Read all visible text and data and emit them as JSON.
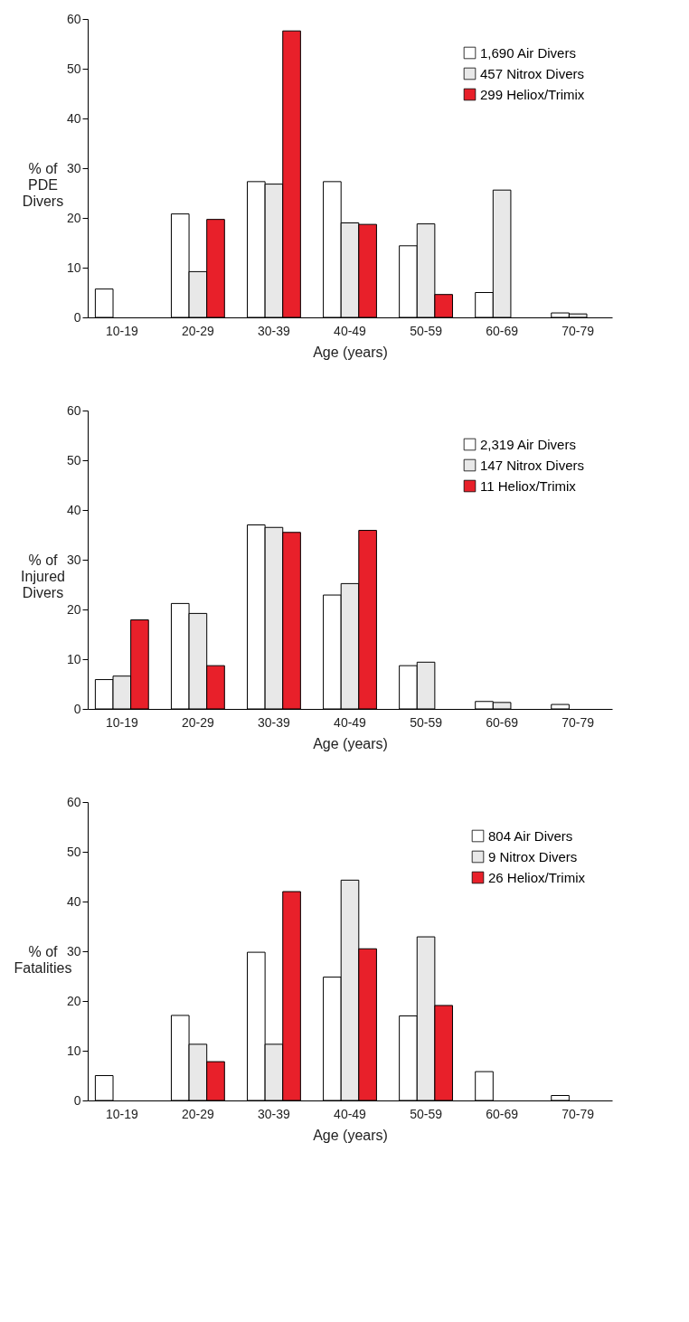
{
  "chart_data": [
    {
      "type": "bar",
      "xlabel": "Age (years)",
      "ylabel": "% of\nPDE\nDivers",
      "categories": [
        "10-19",
        "20-29",
        "30-39",
        "40-49",
        "50-59",
        "60-69",
        "70-79"
      ],
      "ylim": [
        0,
        60
      ],
      "yticks": [
        0,
        10,
        20,
        30,
        40,
        50,
        60
      ],
      "grid": false,
      "legend": "top right",
      "series": [
        {
          "name": "1,690 Air Divers",
          "color": "#ffffff",
          "values": [
            5.7,
            20.8,
            27.3,
            27.3,
            14.4,
            5.0,
            0.9
          ]
        },
        {
          "name": "457 Nitrox Divers",
          "color": "#e8e8e8",
          "values": [
            null,
            9.2,
            26.8,
            19.0,
            18.8,
            25.6,
            0.7
          ]
        },
        {
          "name": "299 Heliox/Trimix",
          "color": "#e8202a",
          "values": [
            null,
            19.7,
            57.6,
            18.7,
            4.6,
            null,
            null
          ]
        }
      ]
    },
    {
      "type": "bar",
      "xlabel": "Age (years)",
      "ylabel": "% of\nInjured\nDivers",
      "categories": [
        "10-19",
        "20-29",
        "30-39",
        "40-49",
        "50-59",
        "60-69",
        "70-79"
      ],
      "ylim": [
        0,
        60
      ],
      "yticks": [
        0,
        10,
        20,
        30,
        40,
        50,
        60
      ],
      "grid": false,
      "legend": "top right",
      "series": [
        {
          "name": "2,319 Air Divers",
          "color": "#ffffff",
          "values": [
            5.9,
            21.2,
            37.0,
            22.9,
            8.7,
            1.5,
            0.9
          ]
        },
        {
          "name": "147 Nitrox Divers",
          "color": "#e8e8e8",
          "values": [
            6.6,
            19.2,
            36.5,
            25.2,
            9.4,
            1.3,
            null
          ]
        },
        {
          "name": "11 Heliox/Trimix",
          "color": "#e8202a",
          "values": [
            17.9,
            8.7,
            35.5,
            35.9,
            null,
            null,
            null
          ]
        }
      ]
    },
    {
      "type": "bar",
      "xlabel": "Age (years)",
      "ylabel": "% of\nFatalities",
      "categories": [
        "10-19",
        "20-29",
        "30-39",
        "40-49",
        "50-59",
        "60-69",
        "70-79"
      ],
      "ylim": [
        0,
        60
      ],
      "yticks": [
        0,
        10,
        20,
        30,
        40,
        50,
        60
      ],
      "grid": false,
      "legend": "top right",
      "series": [
        {
          "name": "804 Air Divers",
          "color": "#ffffff",
          "values": [
            5.0,
            17.1,
            29.8,
            24.8,
            17.0,
            5.8,
            1.0
          ]
        },
        {
          "name": "9 Nitrox Divers",
          "color": "#e8e8e8",
          "values": [
            null,
            11.3,
            11.3,
            44.3,
            32.9,
            null,
            null
          ]
        },
        {
          "name": "26 Heliox/Trimix",
          "color": "#e8202a",
          "values": [
            null,
            7.8,
            42.0,
            30.5,
            19.1,
            null,
            null
          ]
        }
      ]
    }
  ]
}
